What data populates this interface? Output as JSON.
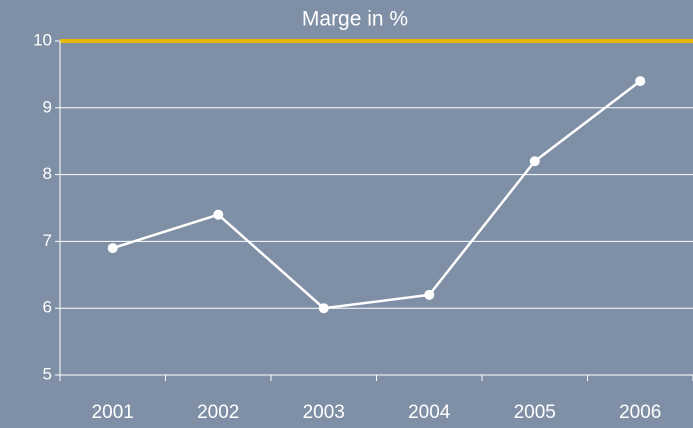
{
  "chart_data": {
    "type": "line",
    "title": "Marge in %",
    "categories": [
      "2001",
      "2002",
      "2003",
      "2004",
      "2005",
      "2006"
    ],
    "values": [
      6.9,
      7.4,
      6.0,
      6.2,
      8.2,
      9.4
    ],
    "color": "#ffffff",
    "top_line_color": "#e6b800",
    "ylim": [
      5,
      10
    ],
    "yticks": [
      5,
      6,
      7,
      8,
      9,
      10
    ],
    "grid": true
  }
}
